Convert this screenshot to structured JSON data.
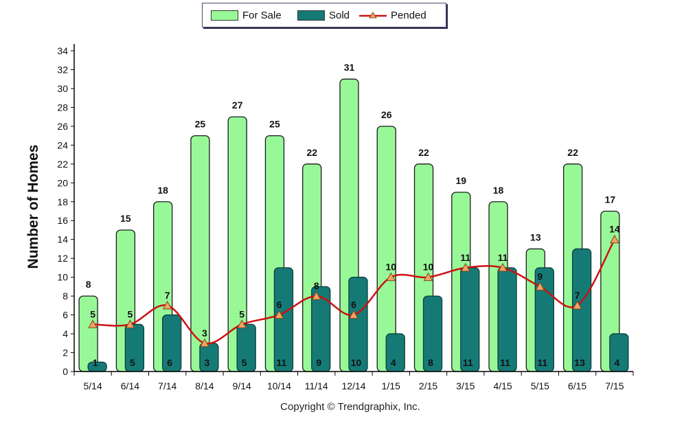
{
  "legend": {
    "for_sale": "For Sale",
    "sold": "Sold",
    "pended": "Pended"
  },
  "copyright": "Copyright © Trendgraphix, Inc.",
  "colors": {
    "for_sale": "#98f898",
    "sold": "#157a76",
    "pended": "#cc1111",
    "marker": "#f4a460"
  },
  "chart_data": {
    "type": "bar",
    "ylabel": "Number of Homes",
    "xlabel": "",
    "ylim": [
      0,
      34
    ],
    "yticks": [
      0,
      2,
      4,
      6,
      8,
      10,
      12,
      14,
      16,
      18,
      20,
      22,
      24,
      26,
      28,
      30,
      32,
      34
    ],
    "grid": false,
    "legend_position": "top-center",
    "categories": [
      "5/14",
      "6/14",
      "7/14",
      "8/14",
      "9/14",
      "10/14",
      "11/14",
      "12/14",
      "1/15",
      "2/15",
      "3/15",
      "4/15",
      "5/15",
      "6/15",
      "7/15"
    ],
    "series": [
      {
        "name": "For Sale",
        "type": "bar",
        "values": [
          8,
          15,
          18,
          25,
          27,
          25,
          22,
          31,
          26,
          22,
          19,
          18,
          13,
          22,
          17
        ]
      },
      {
        "name": "Sold",
        "type": "bar",
        "values": [
          1,
          5,
          6,
          3,
          5,
          11,
          9,
          10,
          4,
          8,
          11,
          11,
          11,
          13,
          4
        ]
      },
      {
        "name": "Pended",
        "type": "line",
        "values": [
          5,
          5,
          7,
          3,
          5,
          6,
          8,
          6,
          10,
          10,
          11,
          11,
          9,
          7,
          14
        ]
      }
    ]
  }
}
